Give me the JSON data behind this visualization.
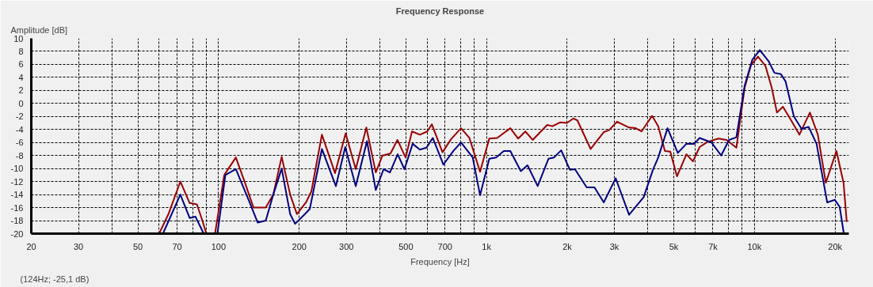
{
  "chart_data": {
    "type": "line",
    "title": "Frequency Response",
    "xlabel": "Frequency [Hz]",
    "ylabel": "Amplitude [dB]",
    "annotations": [
      "(124Hz; -25,1 dB)"
    ],
    "log": "x",
    "grid": true,
    "xlim": [
      20,
      22500
    ],
    "ylim": [
      -20,
      10
    ],
    "xticks": [
      20,
      30,
      {
        "value": 40,
        "label": null
      },
      50,
      {
        "value": 60,
        "label": null
      },
      70,
      {
        "value": 80,
        "label": null
      },
      {
        "value": 90,
        "label": null
      },
      100,
      200,
      300,
      {
        "value": 400,
        "label": null
      },
      500,
      {
        "value": 600,
        "label": null
      },
      700,
      {
        "value": 800,
        "label": null
      },
      {
        "value": 900,
        "label": null
      },
      {
        "value": 1000,
        "label": "1k"
      },
      {
        "value": 2000,
        "label": "2k"
      },
      {
        "value": 3000,
        "label": "3k"
      },
      {
        "value": 4000,
        "label": null
      },
      {
        "value": 5000,
        "label": "5k"
      },
      {
        "value": 6000,
        "label": null
      },
      {
        "value": 7000,
        "label": "7k"
      },
      {
        "value": 8000,
        "label": null
      },
      {
        "value": 9000,
        "label": null
      },
      {
        "value": 10000,
        "label": "10k"
      },
      {
        "value": 20000,
        "label": "20k"
      }
    ],
    "yticks": [
      -20,
      -18,
      -16,
      -14,
      -12,
      -10,
      -8,
      -6,
      -4,
      -2,
      0,
      2,
      4,
      6,
      8,
      10
    ],
    "series": [
      {
        "color": "#990000",
        "x": [
          60,
          65,
          72,
          78,
          83,
          87,
          90,
          null,
          97,
          105,
          116,
          125,
          135,
          150,
          160,
          172,
          185,
          196,
          212,
          222,
          243,
          272,
          298,
          325,
          356,
          386,
          409,
          438,
          465,
          499,
          527,
          564,
          601,
          625,
          685,
          737,
          803,
          863,
          946,
          1024,
          1096,
          1227,
          1313,
          1396,
          1487,
          1684,
          1762,
          1886,
          1996,
          2112,
          2183,
          2447,
          2739,
          2866,
          3069,
          3404,
          3602,
          3789,
          4150,
          4374,
          4632,
          4850,
          5138,
          5572,
          5893,
          6244,
          6686,
          7337,
          7863,
          8559,
          9188,
          9706,
          10306,
          10980,
          11600,
          12130,
          12770,
          13570,
          14710,
          16100,
          17240,
          18460,
          20230,
          21500,
          22100
        ],
        "values": [
          -20,
          -17,
          -12,
          -15.3,
          -15.5,
          -18,
          -20,
          null,
          -20,
          -11,
          -8.3,
          -12,
          -16,
          -16,
          -14,
          -8.2,
          -14,
          -17,
          -15.2,
          -13.5,
          -4.8,
          -10.7,
          -4.6,
          -10.1,
          -3.7,
          -10.6,
          -8,
          -7.7,
          -5.6,
          -8.3,
          -4.3,
          -4.8,
          -4.3,
          -3.2,
          -7.5,
          -5.5,
          -3.8,
          -5.3,
          -10.5,
          -5.4,
          -5.3,
          -3.8,
          -5.4,
          -4.3,
          -5.6,
          -3.3,
          -3.5,
          -2.9,
          -3,
          -2.3,
          -2.6,
          -7,
          -4.4,
          -4.1,
          -2.8,
          -3.7,
          -3.8,
          -4.3,
          -1.9,
          -3.5,
          -7.3,
          -7.4,
          -11.2,
          -7.8,
          -8.9,
          -6.7,
          -5.9,
          -5.4,
          -5.6,
          -6.8,
          2.4,
          5.9,
          7.2,
          5.8,
          2.4,
          -1.4,
          -0.5,
          -2.3,
          -4.8,
          -1.4,
          -4.8,
          -12.2,
          -7.3,
          -12.2,
          -18.2
        ]
      },
      {
        "color": "#000080",
        "x": [
          62,
          72,
          78,
          82,
          88,
          null,
          99,
          106,
          116,
          130,
          140,
          150,
          160,
          172,
          185,
          193,
          210,
          219,
          243,
          274,
          297,
          325,
          358,
          386,
          413,
          436,
          466,
          494,
          530,
          564,
          597,
          630,
          690,
          752,
          803,
          888,
          946,
          1024,
          1085,
          1160,
          1227,
          1343,
          1422,
          1552,
          1703,
          1784,
          1900,
          2048,
          2138,
          2365,
          2528,
          2739,
          3034,
          3404,
          3859,
          4178,
          4374,
          4738,
          5174,
          5572,
          5960,
          6244,
          6914,
          7508,
          8040,
          8559,
          9188,
          9813,
          10466,
          11290,
          11870,
          12550,
          13060,
          14030,
          14990,
          15930,
          17050,
          18680,
          19960,
          20800,
          21550
        ],
        "values": [
          -20,
          -14,
          -17.6,
          -17.4,
          -20,
          null,
          -20,
          -11,
          -10.1,
          -15,
          -18.3,
          -18,
          -14,
          -10,
          -17,
          -18.5,
          -17,
          -16.2,
          -7,
          -12.7,
          -6.7,
          -12.7,
          -5.8,
          -13.3,
          -10.1,
          -10.6,
          -7.8,
          -10.1,
          -6.2,
          -7.1,
          -6.8,
          -5.3,
          -9.4,
          -7.3,
          -6,
          -8.3,
          -14.1,
          -8.5,
          -8.3,
          -7.3,
          -7.3,
          -10.4,
          -9.5,
          -12.7,
          -8.5,
          -8.3,
          -7.2,
          -10.2,
          -10.1,
          -12.9,
          -12.9,
          -15.2,
          -11.5,
          -17.1,
          -14.4,
          -10.2,
          -8.3,
          -3.8,
          -7.6,
          -6.2,
          -6.2,
          -5.3,
          -6,
          -8,
          -5.6,
          -5.2,
          2.7,
          6.7,
          8.2,
          6.5,
          4.7,
          4.5,
          3.4,
          -2,
          -3.9,
          -3.6,
          -6.2,
          -15.2,
          -14.8,
          -15.9,
          -20
        ]
      }
    ]
  }
}
